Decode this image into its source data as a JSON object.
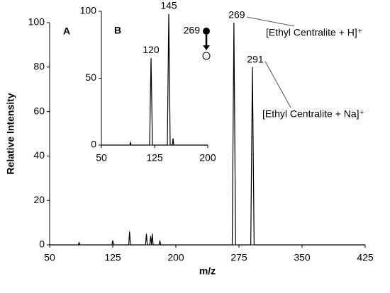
{
  "chart_data": [
    {
      "type": "line",
      "x_label": "m/z",
      "y_label": "Relative Intensity",
      "panel_label": "A",
      "x": [
        50,
        84,
        85,
        86,
        124,
        125,
        126,
        144,
        145,
        146,
        164,
        165,
        166,
        169,
        170,
        171,
        172,
        173,
        180,
        181,
        182,
        267,
        269,
        271,
        289,
        291,
        293,
        425
      ],
      "series": [
        {
          "color": "#000000",
          "values": [
            0,
            0,
            1,
            0,
            0,
            2,
            0,
            0,
            6,
            0,
            0,
            5,
            0,
            0,
            4,
            0,
            5,
            0,
            0,
            2,
            0,
            0,
            100,
            0,
            0,
            80,
            0,
            0
          ]
        }
      ],
      "xlim": [
        50,
        425
      ],
      "xticks": [
        50,
        125,
        200,
        275,
        350,
        425
      ],
      "ylim": [
        0,
        100
      ],
      "yticks": [
        0,
        20,
        40,
        60,
        80,
        100
      ],
      "peak_labels": [
        269,
        291
      ],
      "annotations": [
        "[Ethyl Centralite + H]⁺",
        "[Ethyl Centralite + Na]⁺"
      ]
    },
    {
      "type": "line",
      "panel_label": "B",
      "x": [
        50,
        90,
        91,
        92,
        118,
        120,
        122,
        143,
        145,
        147,
        150,
        151,
        152,
        200
      ],
      "series": [
        {
          "color": "#000000",
          "values": [
            0,
            0,
            2,
            0,
            0,
            65,
            0,
            0,
            98,
            0,
            0,
            5,
            0,
            0
          ]
        }
      ],
      "xlim": [
        50,
        200
      ],
      "xticks": [
        50,
        125,
        200
      ],
      "ylim": [
        0,
        100
      ],
      "yticks": [
        0,
        50,
        100
      ],
      "peak_labels": [
        120,
        145
      ],
      "precursor": 269
    }
  ]
}
